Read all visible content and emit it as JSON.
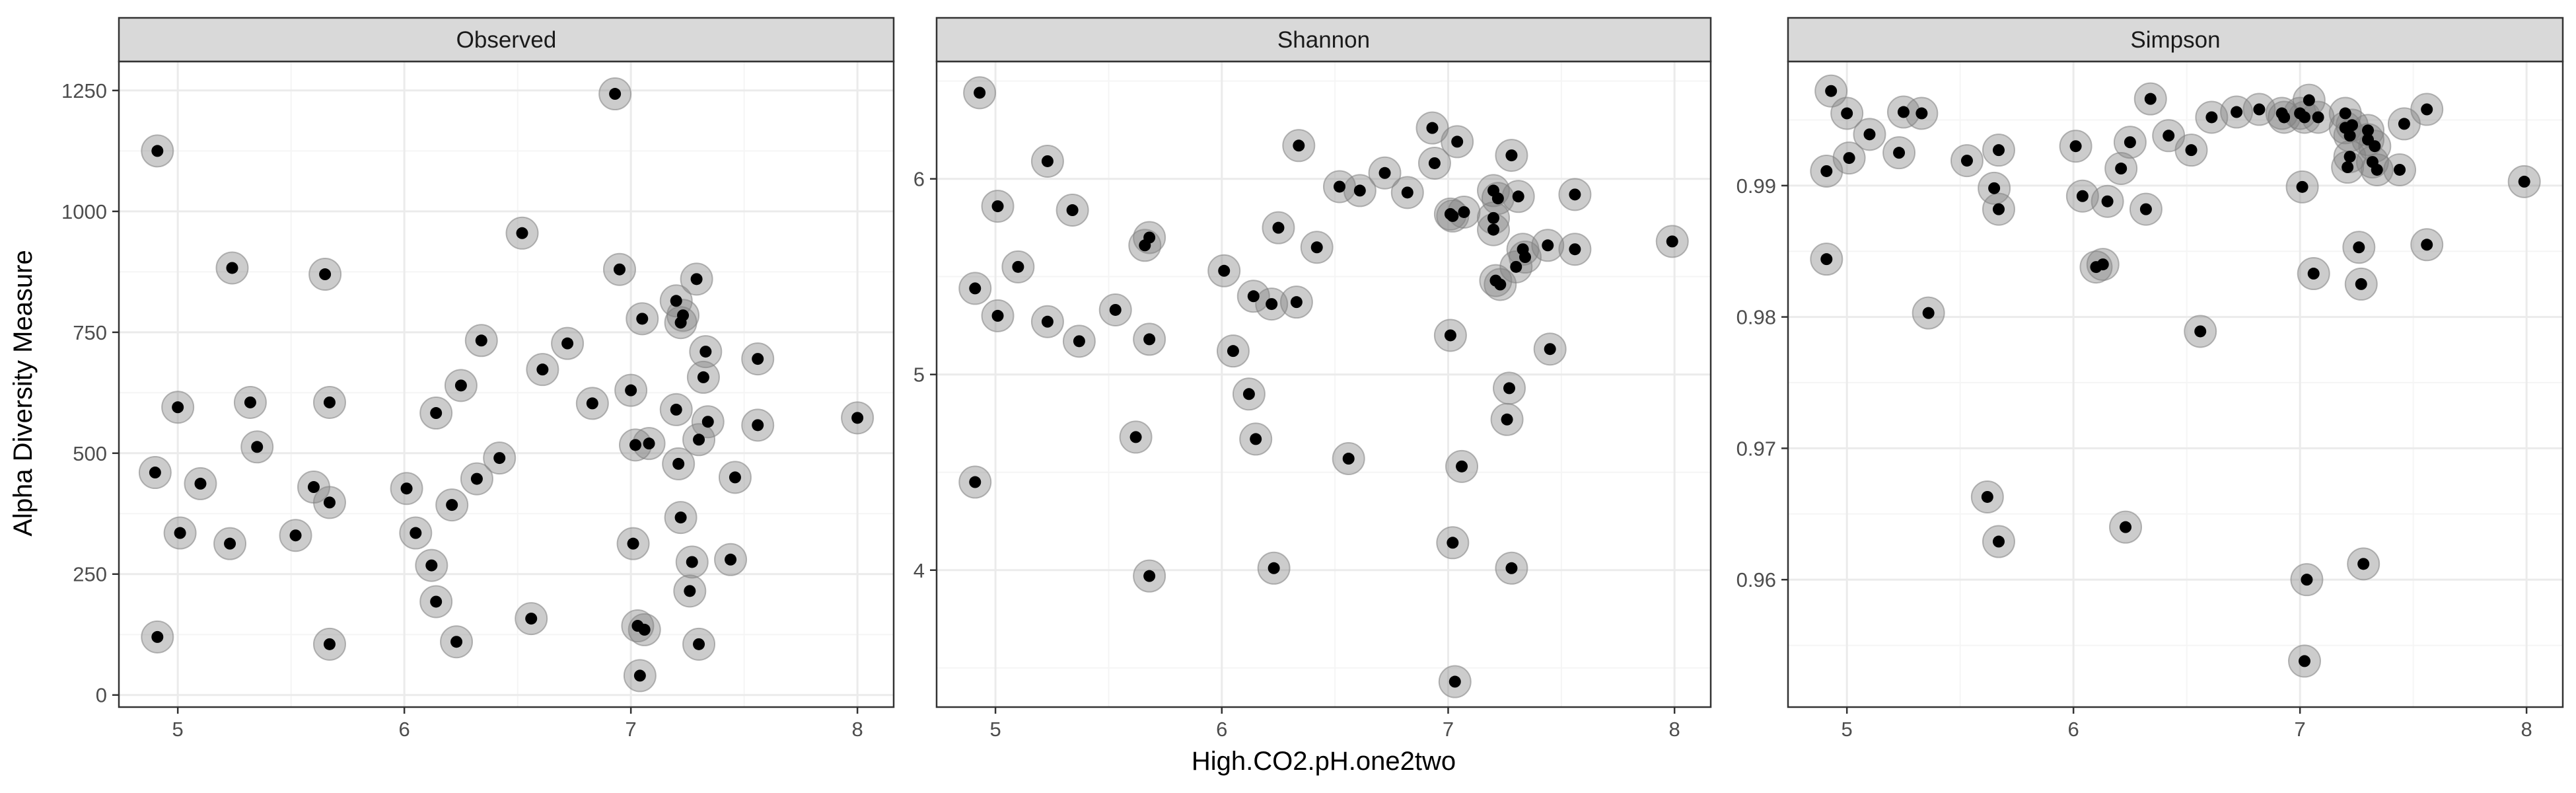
{
  "figure": {
    "ylabel": "Alpha Diversity Measure",
    "xlabel": "High.CO2.pH.one2two"
  },
  "colors": {
    "strip_fill": "#d9d9d9",
    "panel_border": "#333333",
    "grid_major": "#ebebeb",
    "grid_minor": "#f5f5f5",
    "point": "#000000",
    "halo": "#808080"
  },
  "chart_data": [
    {
      "type": "scatter",
      "title": "Observed",
      "xlabel": "High.CO2.pH.one2two",
      "ylabel": "Alpha Diversity Measure",
      "xlim": [
        4.74,
        8.16
      ],
      "ylim": [
        -25,
        1310
      ],
      "xticks": [
        5,
        6,
        7,
        8
      ],
      "yticks": [
        0,
        250,
        500,
        750,
        1000,
        1250
      ],
      "grid": true,
      "points": [
        {
          "x": 4.91,
          "y": 1125
        },
        {
          "x": 4.9,
          "y": 460
        },
        {
          "x": 4.91,
          "y": 120
        },
        {
          "x": 5.0,
          "y": 595
        },
        {
          "x": 5.01,
          "y": 335
        },
        {
          "x": 5.1,
          "y": 437
        },
        {
          "x": 5.23,
          "y": 313
        },
        {
          "x": 5.24,
          "y": 883
        },
        {
          "x": 5.32,
          "y": 605
        },
        {
          "x": 5.35,
          "y": 513
        },
        {
          "x": 5.52,
          "y": 330
        },
        {
          "x": 5.6,
          "y": 430
        },
        {
          "x": 5.65,
          "y": 870
        },
        {
          "x": 5.67,
          "y": 605
        },
        {
          "x": 5.67,
          "y": 398
        },
        {
          "x": 5.67,
          "y": 105
        },
        {
          "x": 6.01,
          "y": 427
        },
        {
          "x": 6.05,
          "y": 335
        },
        {
          "x": 6.12,
          "y": 268
        },
        {
          "x": 6.14,
          "y": 583
        },
        {
          "x": 6.14,
          "y": 193
        },
        {
          "x": 6.21,
          "y": 393
        },
        {
          "x": 6.23,
          "y": 110
        },
        {
          "x": 6.25,
          "y": 640
        },
        {
          "x": 6.32,
          "y": 447
        },
        {
          "x": 6.34,
          "y": 733
        },
        {
          "x": 6.42,
          "y": 490
        },
        {
          "x": 6.52,
          "y": 955
        },
        {
          "x": 6.56,
          "y": 158
        },
        {
          "x": 6.61,
          "y": 673
        },
        {
          "x": 6.72,
          "y": 727
        },
        {
          "x": 6.83,
          "y": 603
        },
        {
          "x": 6.93,
          "y": 1243
        },
        {
          "x": 6.95,
          "y": 880
        },
        {
          "x": 7.0,
          "y": 630
        },
        {
          "x": 7.01,
          "y": 313
        },
        {
          "x": 7.02,
          "y": 517
        },
        {
          "x": 7.03,
          "y": 143
        },
        {
          "x": 7.04,
          "y": 40
        },
        {
          "x": 7.05,
          "y": 778
        },
        {
          "x": 7.06,
          "y": 135
        },
        {
          "x": 7.08,
          "y": 520
        },
        {
          "x": 7.2,
          "y": 590
        },
        {
          "x": 7.2,
          "y": 815
        },
        {
          "x": 7.21,
          "y": 478
        },
        {
          "x": 7.22,
          "y": 367
        },
        {
          "x": 7.22,
          "y": 770
        },
        {
          "x": 7.23,
          "y": 785
        },
        {
          "x": 7.26,
          "y": 215
        },
        {
          "x": 7.27,
          "y": 275
        },
        {
          "x": 7.29,
          "y": 860
        },
        {
          "x": 7.3,
          "y": 528
        },
        {
          "x": 7.3,
          "y": 105
        },
        {
          "x": 7.32,
          "y": 657
        },
        {
          "x": 7.33,
          "y": 710
        },
        {
          "x": 7.34,
          "y": 565
        },
        {
          "x": 7.44,
          "y": 280
        },
        {
          "x": 7.46,
          "y": 450
        },
        {
          "x": 7.56,
          "y": 695
        },
        {
          "x": 7.56,
          "y": 558
        },
        {
          "x": 8.0,
          "y": 573
        }
      ]
    },
    {
      "type": "scatter",
      "title": "Shannon",
      "xlabel": "High.CO2.pH.one2two",
      "ylabel": "Alpha Diversity Measure",
      "xlim": [
        4.74,
        8.16
      ],
      "ylim": [
        3.3,
        6.6
      ],
      "xticks": [
        5,
        6,
        7,
        8
      ],
      "yticks": [
        4,
        5,
        6
      ],
      "grid": true,
      "points": [
        {
          "x": 4.93,
          "y": 6.44
        },
        {
          "x": 4.91,
          "y": 5.44
        },
        {
          "x": 4.91,
          "y": 4.45
        },
        {
          "x": 5.01,
          "y": 5.86
        },
        {
          "x": 5.01,
          "y": 5.3
        },
        {
          "x": 5.1,
          "y": 5.55
        },
        {
          "x": 5.23,
          "y": 6.09
        },
        {
          "x": 5.23,
          "y": 5.27
        },
        {
          "x": 5.34,
          "y": 5.84
        },
        {
          "x": 5.37,
          "y": 5.17
        },
        {
          "x": 5.53,
          "y": 5.33
        },
        {
          "x": 5.62,
          "y": 4.68
        },
        {
          "x": 5.66,
          "y": 5.66
        },
        {
          "x": 5.68,
          "y": 5.7
        },
        {
          "x": 5.68,
          "y": 5.18
        },
        {
          "x": 5.68,
          "y": 3.97
        },
        {
          "x": 6.01,
          "y": 5.53
        },
        {
          "x": 6.05,
          "y": 5.12
        },
        {
          "x": 6.12,
          "y": 4.9
        },
        {
          "x": 6.14,
          "y": 5.4
        },
        {
          "x": 6.15,
          "y": 4.67
        },
        {
          "x": 6.22,
          "y": 5.36
        },
        {
          "x": 6.23,
          "y": 4.01
        },
        {
          "x": 6.25,
          "y": 5.75
        },
        {
          "x": 6.33,
          "y": 5.37
        },
        {
          "x": 6.34,
          "y": 6.17
        },
        {
          "x": 6.42,
          "y": 5.65
        },
        {
          "x": 6.52,
          "y": 5.96
        },
        {
          "x": 6.56,
          "y": 4.57
        },
        {
          "x": 6.61,
          "y": 5.94
        },
        {
          "x": 6.72,
          "y": 6.03
        },
        {
          "x": 6.82,
          "y": 5.93
        },
        {
          "x": 6.93,
          "y": 6.26
        },
        {
          "x": 6.94,
          "y": 6.08
        },
        {
          "x": 7.01,
          "y": 5.82
        },
        {
          "x": 7.01,
          "y": 5.2
        },
        {
          "x": 7.02,
          "y": 5.81
        },
        {
          "x": 7.02,
          "y": 4.14
        },
        {
          "x": 7.03,
          "y": 3.43
        },
        {
          "x": 7.04,
          "y": 6.19
        },
        {
          "x": 7.06,
          "y": 4.53
        },
        {
          "x": 7.07,
          "y": 5.83
        },
        {
          "x": 7.2,
          "y": 5.94
        },
        {
          "x": 7.2,
          "y": 5.8
        },
        {
          "x": 7.2,
          "y": 5.74
        },
        {
          "x": 7.21,
          "y": 5.48
        },
        {
          "x": 7.22,
          "y": 5.9
        },
        {
          "x": 7.23,
          "y": 5.46
        },
        {
          "x": 7.26,
          "y": 4.77
        },
        {
          "x": 7.27,
          "y": 4.93
        },
        {
          "x": 7.28,
          "y": 6.12
        },
        {
          "x": 7.28,
          "y": 4.01
        },
        {
          "x": 7.3,
          "y": 5.55
        },
        {
          "x": 7.31,
          "y": 5.91
        },
        {
          "x": 7.33,
          "y": 5.64
        },
        {
          "x": 7.34,
          "y": 5.6
        },
        {
          "x": 7.44,
          "y": 5.66
        },
        {
          "x": 7.45,
          "y": 5.13
        },
        {
          "x": 7.56,
          "y": 5.92
        },
        {
          "x": 7.56,
          "y": 5.64
        },
        {
          "x": 7.99,
          "y": 5.68
        }
      ]
    },
    {
      "type": "scatter",
      "title": "Simpson",
      "xlabel": "High.CO2.pH.one2two",
      "ylabel": "Alpha Diversity Measure",
      "xlim": [
        4.74,
        8.16
      ],
      "ylim": [
        0.9503,
        0.99945
      ],
      "xticks": [
        5,
        6,
        7,
        8
      ],
      "yticks": [
        0.96,
        0.97,
        0.98,
        0.99
      ],
      "grid": true,
      "points": [
        {
          "x": 4.93,
          "y": 0.9972
        },
        {
          "x": 4.91,
          "y": 0.9911
        },
        {
          "x": 4.91,
          "y": 0.9844
        },
        {
          "x": 5.0,
          "y": 0.9955
        },
        {
          "x": 5.01,
          "y": 0.9921
        },
        {
          "x": 5.1,
          "y": 0.9939
        },
        {
          "x": 5.23,
          "y": 0.9925
        },
        {
          "x": 5.25,
          "y": 0.9956
        },
        {
          "x": 5.33,
          "y": 0.9955
        },
        {
          "x": 5.36,
          "y": 0.9803
        },
        {
          "x": 5.53,
          "y": 0.9919
        },
        {
          "x": 5.62,
          "y": 0.9663
        },
        {
          "x": 5.65,
          "y": 0.9898
        },
        {
          "x": 5.67,
          "y": 0.9927
        },
        {
          "x": 5.67,
          "y": 0.9882
        },
        {
          "x": 5.67,
          "y": 0.9629
        },
        {
          "x": 6.01,
          "y": 0.993
        },
        {
          "x": 6.04,
          "y": 0.9892
        },
        {
          "x": 6.1,
          "y": 0.9838
        },
        {
          "x": 6.13,
          "y": 0.984
        },
        {
          "x": 6.15,
          "y": 0.9888
        },
        {
          "x": 6.21,
          "y": 0.9913
        },
        {
          "x": 6.23,
          "y": 0.964
        },
        {
          "x": 6.25,
          "y": 0.9933
        },
        {
          "x": 6.32,
          "y": 0.9882
        },
        {
          "x": 6.34,
          "y": 0.9966
        },
        {
          "x": 6.42,
          "y": 0.9938
        },
        {
          "x": 6.52,
          "y": 0.9927
        },
        {
          "x": 6.56,
          "y": 0.9789
        },
        {
          "x": 6.61,
          "y": 0.9952
        },
        {
          "x": 6.72,
          "y": 0.9956
        },
        {
          "x": 6.82,
          "y": 0.9958
        },
        {
          "x": 6.92,
          "y": 0.9955
        },
        {
          "x": 6.93,
          "y": 0.9952
        },
        {
          "x": 7.0,
          "y": 0.9955
        },
        {
          "x": 7.01,
          "y": 0.9899
        },
        {
          "x": 7.02,
          "y": 0.9952
        },
        {
          "x": 7.02,
          "y": 0.9538
        },
        {
          "x": 7.03,
          "y": 0.96
        },
        {
          "x": 7.04,
          "y": 0.9965
        },
        {
          "x": 7.06,
          "y": 0.9833
        },
        {
          "x": 7.08,
          "y": 0.9952
        },
        {
          "x": 7.2,
          "y": 0.9955
        },
        {
          "x": 7.2,
          "y": 0.9944
        },
        {
          "x": 7.21,
          "y": 0.9914
        },
        {
          "x": 7.22,
          "y": 0.9938
        },
        {
          "x": 7.22,
          "y": 0.9922
        },
        {
          "x": 7.23,
          "y": 0.9946
        },
        {
          "x": 7.26,
          "y": 0.9853
        },
        {
          "x": 7.27,
          "y": 0.9825
        },
        {
          "x": 7.28,
          "y": 0.9612
        },
        {
          "x": 7.3,
          "y": 0.9935
        },
        {
          "x": 7.3,
          "y": 0.9942
        },
        {
          "x": 7.32,
          "y": 0.9918
        },
        {
          "x": 7.33,
          "y": 0.993
        },
        {
          "x": 7.34,
          "y": 0.9912
        },
        {
          "x": 7.44,
          "y": 0.9912
        },
        {
          "x": 7.46,
          "y": 0.9947
        },
        {
          "x": 7.56,
          "y": 0.9958
        },
        {
          "x": 7.56,
          "y": 0.9855
        },
        {
          "x": 7.99,
          "y": 0.9903
        }
      ]
    }
  ]
}
